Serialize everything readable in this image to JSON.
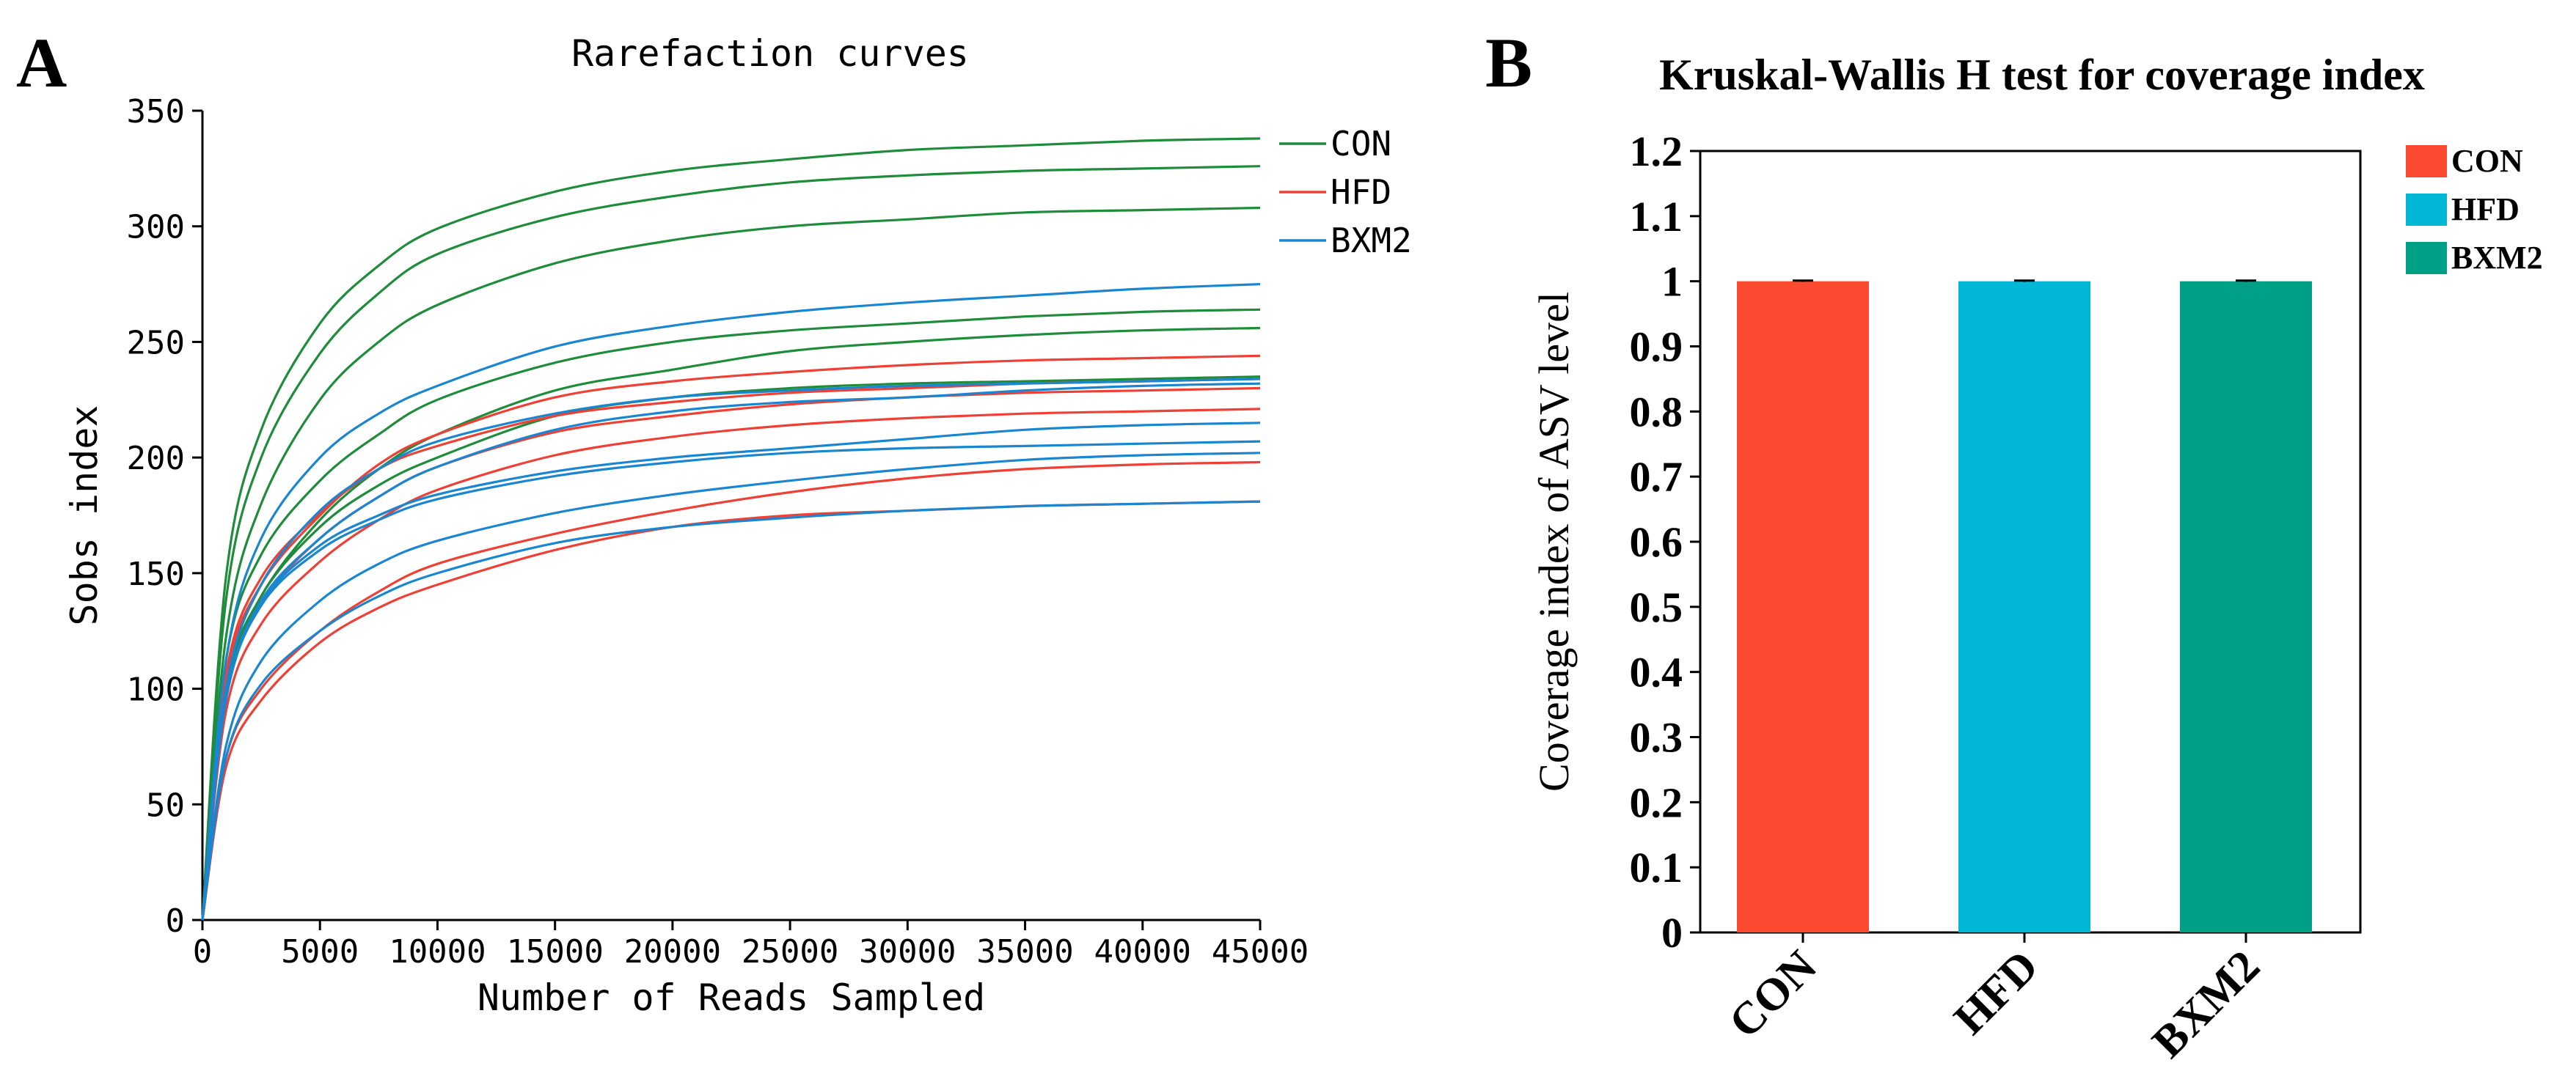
{
  "panel_a_letter": "A",
  "panel_b_letter": "B",
  "chart_data": [
    {
      "type": "line",
      "title": "Rarefaction curves",
      "xlabel": "Number of Reads Sampled",
      "ylabel": "Sobs index",
      "xlim": [
        0,
        45000
      ],
      "ylim": [
        0,
        350
      ],
      "xticks": [
        "0",
        "5000",
        "10000",
        "15000",
        "20000",
        "25000",
        "30000",
        "35000",
        "40000",
        "45000"
      ],
      "yticks": [
        "0",
        "50",
        "100",
        "150",
        "200",
        "250",
        "300",
        "350"
      ],
      "legend": "right",
      "x": [
        0,
        1000,
        2500,
        5000,
        7500,
        10000,
        15000,
        20000,
        25000,
        30000,
        35000,
        40000,
        45000
      ],
      "groups": [
        {
          "name": "CON",
          "color": "#1e8c3a"
        },
        {
          "name": "HFD",
          "color": "#ee4035"
        },
        {
          "name": "BXM2",
          "color": "#1a86d0"
        }
      ],
      "series": [
        {
          "group": "CON",
          "values": [
            0,
            148,
            212,
            258,
            283,
            299,
            315,
            324,
            329,
            333,
            335,
            337,
            338
          ]
        },
        {
          "group": "CON",
          "values": [
            0,
            138,
            200,
            245,
            271,
            288,
            304,
            313,
            319,
            322,
            324,
            325,
            326
          ]
        },
        {
          "group": "CON",
          "values": [
            0,
            122,
            180,
            225,
            250,
            266,
            284,
            294,
            300,
            303,
            306,
            307,
            308
          ]
        },
        {
          "group": "CON",
          "values": [
            0,
            112,
            158,
            190,
            210,
            225,
            241,
            250,
            255,
            258,
            261,
            263,
            264
          ]
        },
        {
          "group": "CON",
          "values": [
            0,
            100,
            140,
            173,
            195,
            210,
            229,
            238,
            246,
            250,
            253,
            255,
            256
          ]
        },
        {
          "group": "CON",
          "values": [
            0,
            98,
            140,
            170,
            188,
            200,
            218,
            226,
            230,
            232,
            233,
            234,
            235
          ]
        },
        {
          "group": "HFD",
          "values": [
            0,
            104,
            145,
            175,
            197,
            210,
            226,
            233,
            237,
            240,
            242,
            243,
            244
          ]
        },
        {
          "group": "HFD",
          "values": [
            0,
            106,
            148,
            176,
            195,
            205,
            218,
            224,
            228,
            230,
            232,
            233,
            234
          ]
        },
        {
          "group": "HFD",
          "values": [
            0,
            96,
            137,
            165,
            183,
            196,
            211,
            218,
            223,
            226,
            228,
            229,
            230
          ]
        },
        {
          "group": "HFD",
          "values": [
            0,
            90,
            128,
            155,
            173,
            186,
            201,
            209,
            214,
            217,
            219,
            220,
            221
          ]
        },
        {
          "group": "HFD",
          "values": [
            0,
            70,
            100,
            125,
            142,
            154,
            167,
            177,
            185,
            191,
            195,
            197,
            198
          ]
        },
        {
          "group": "HFD",
          "values": [
            0,
            66,
            95,
            120,
            135,
            145,
            160,
            170,
            175,
            177,
            179,
            180,
            181
          ]
        },
        {
          "group": "BXM2",
          "values": [
            0,
            112,
            165,
            200,
            219,
            231,
            248,
            257,
            263,
            267,
            270,
            273,
            275
          ]
        },
        {
          "group": "BXM2",
          "values": [
            0,
            100,
            145,
            177,
            195,
            207,
            219,
            226,
            229,
            231,
            232,
            233,
            234
          ]
        },
        {
          "group": "BXM2",
          "values": [
            0,
            96,
            138,
            165,
            183,
            196,
            212,
            220,
            224,
            226,
            229,
            231,
            232
          ]
        },
        {
          "group": "BXM2",
          "values": [
            0,
            95,
            137,
            162,
            175,
            184,
            194,
            200,
            204,
            208,
            212,
            214,
            215
          ]
        },
        {
          "group": "BXM2",
          "values": [
            0,
            95,
            136,
            160,
            173,
            182,
            192,
            198,
            202,
            204,
            205,
            206,
            207
          ]
        },
        {
          "group": "BXM2",
          "values": [
            0,
            75,
            112,
            138,
            154,
            164,
            176,
            184,
            190,
            195,
            199,
            201,
            202
          ]
        },
        {
          "group": "BXM2",
          "values": [
            0,
            70,
            102,
            125,
            140,
            150,
            163,
            170,
            174,
            177,
            179,
            180,
            181
          ]
        }
      ]
    },
    {
      "type": "bar",
      "title": "Kruskal-Wallis H test for coverage index",
      "xlabel": "",
      "ylabel": "Coverage index of ASV level",
      "categories": [
        "CON",
        "HFD",
        "BXM2"
      ],
      "values": [
        1,
        1,
        1
      ],
      "error": [
        0.001,
        0.001,
        0.001
      ],
      "colors": [
        "#fb4a2f",
        "#00b8d6",
        "#00a087"
      ],
      "ylim": [
        0,
        1.2
      ],
      "yticks": [
        "0",
        "0.1",
        "0.2",
        "0.3",
        "0.4",
        "0.5",
        "0.6",
        "0.7",
        "0.8",
        "0.9",
        "1",
        "1.1",
        "1.2"
      ],
      "legend": "top-right"
    }
  ]
}
